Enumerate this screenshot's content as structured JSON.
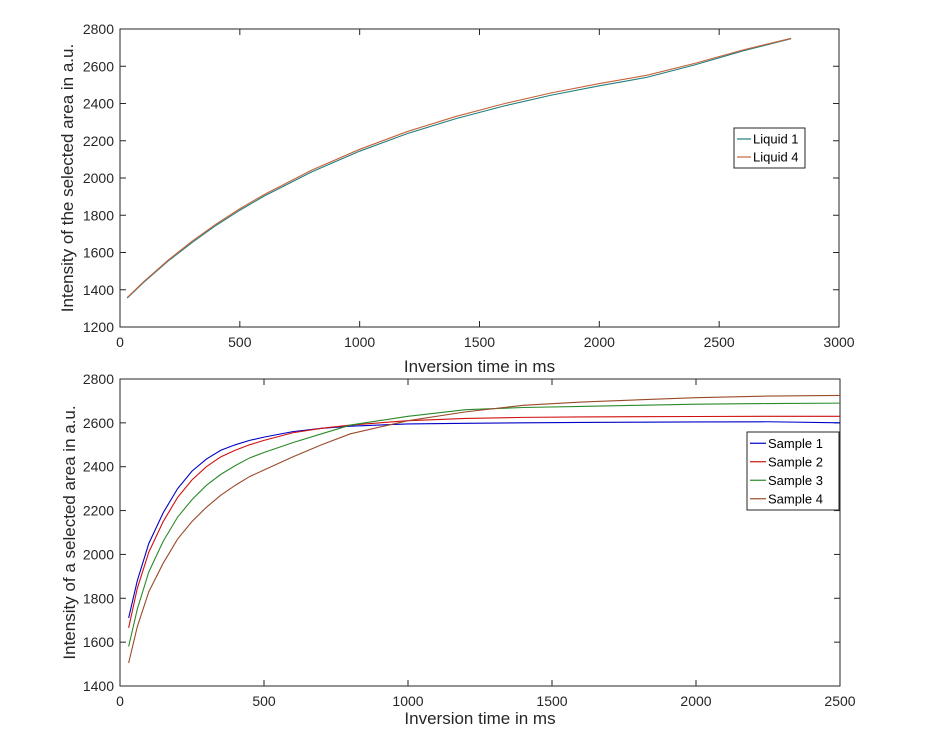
{
  "chart_data": [
    {
      "type": "line",
      "xlabel": "Inversion time in ms",
      "ylabel": "Intensity of the selected area in a.u.",
      "xlim": [
        0,
        3000
      ],
      "ylim": [
        1200,
        2800
      ],
      "xticks": [
        "0",
        "500",
        "1000",
        "1500",
        "2000",
        "2500",
        "3000"
      ],
      "yticks": [
        "1200",
        "1400",
        "1600",
        "1800",
        "2000",
        "2200",
        "2400",
        "2600",
        "2800"
      ],
      "grid": false,
      "legend_position": "right",
      "series": [
        {
          "name": "Liquid 1",
          "color": "#1f7f7f",
          "x": [
            30,
            100,
            200,
            300,
            400,
            500,
            600,
            800,
            1000,
            1200,
            1400,
            1600,
            1800,
            2000,
            2200,
            2400,
            2600,
            2800
          ],
          "y": [
            1355,
            1441,
            1553,
            1653,
            1745,
            1827,
            1902,
            2033,
            2144,
            2239,
            2318,
            2386,
            2445,
            2495,
            2541,
            2608,
            2683,
            2748
          ]
        },
        {
          "name": "Liquid 4",
          "color": "#c8623a",
          "x": [
            30,
            100,
            200,
            300,
            400,
            500,
            600,
            800,
            1000,
            1200,
            1400,
            1600,
            1800,
            2000,
            2200,
            2400,
            2600,
            2800
          ],
          "y": [
            1358,
            1445,
            1558,
            1660,
            1752,
            1835,
            1910,
            2042,
            2154,
            2250,
            2330,
            2398,
            2457,
            2507,
            2552,
            2616,
            2688,
            2750
          ]
        }
      ]
    },
    {
      "type": "line",
      "xlabel": "Inversion time in ms",
      "ylabel": "Intensity of a selected area in a.u.",
      "xlim": [
        0,
        2500
      ],
      "ylim": [
        1400,
        2800
      ],
      "xticks": [
        "0",
        "500",
        "1000",
        "1500",
        "2000",
        "2500"
      ],
      "yticks": [
        "1400",
        "1600",
        "1800",
        "2000",
        "2200",
        "2400",
        "2600",
        "2800"
      ],
      "grid": false,
      "legend_position": "right",
      "series": [
        {
          "name": "Sample 1",
          "color": "#0000c8",
          "x": [
            30,
            60,
            100,
            150,
            200,
            250,
            300,
            350,
            400,
            450,
            500,
            600,
            700,
            800,
            1000,
            1200,
            1400,
            1600,
            1800,
            2000,
            2250,
            2500
          ],
          "y": [
            1710,
            1880,
            2050,
            2190,
            2300,
            2380,
            2435,
            2475,
            2500,
            2520,
            2535,
            2560,
            2575,
            2585,
            2595,
            2598,
            2600,
            2602,
            2603,
            2604,
            2605,
            2600
          ]
        },
        {
          "name": "Sample 2",
          "color": "#d01010",
          "x": [
            30,
            60,
            100,
            150,
            200,
            250,
            300,
            350,
            400,
            450,
            500,
            600,
            700,
            800,
            1000,
            1200,
            1400,
            1600,
            1800,
            2000,
            2250,
            2500
          ],
          "y": [
            1665,
            1845,
            2010,
            2150,
            2260,
            2340,
            2400,
            2445,
            2475,
            2500,
            2520,
            2555,
            2575,
            2590,
            2610,
            2620,
            2625,
            2627,
            2628,
            2629,
            2630,
            2630
          ]
        },
        {
          "name": "Sample 3",
          "color": "#2a8a2a",
          "x": [
            30,
            60,
            100,
            150,
            200,
            250,
            300,
            350,
            400,
            450,
            500,
            600,
            700,
            800,
            1000,
            1200,
            1400,
            1600,
            1800,
            2000,
            2250,
            2500
          ],
          "y": [
            1580,
            1750,
            1920,
            2060,
            2170,
            2250,
            2315,
            2365,
            2405,
            2440,
            2465,
            2510,
            2550,
            2590,
            2630,
            2660,
            2670,
            2675,
            2680,
            2685,
            2688,
            2690
          ]
        },
        {
          "name": "Sample 4",
          "color": "#9a4a2a",
          "x": [
            30,
            60,
            100,
            150,
            200,
            250,
            300,
            350,
            400,
            450,
            500,
            600,
            700,
            800,
            1000,
            1200,
            1400,
            1600,
            1800,
            2000,
            2250,
            2500
          ],
          "y": [
            1505,
            1670,
            1830,
            1960,
            2070,
            2150,
            2215,
            2270,
            2315,
            2355,
            2385,
            2445,
            2500,
            2550,
            2610,
            2650,
            2680,
            2695,
            2705,
            2715,
            2722,
            2725
          ]
        }
      ]
    }
  ]
}
